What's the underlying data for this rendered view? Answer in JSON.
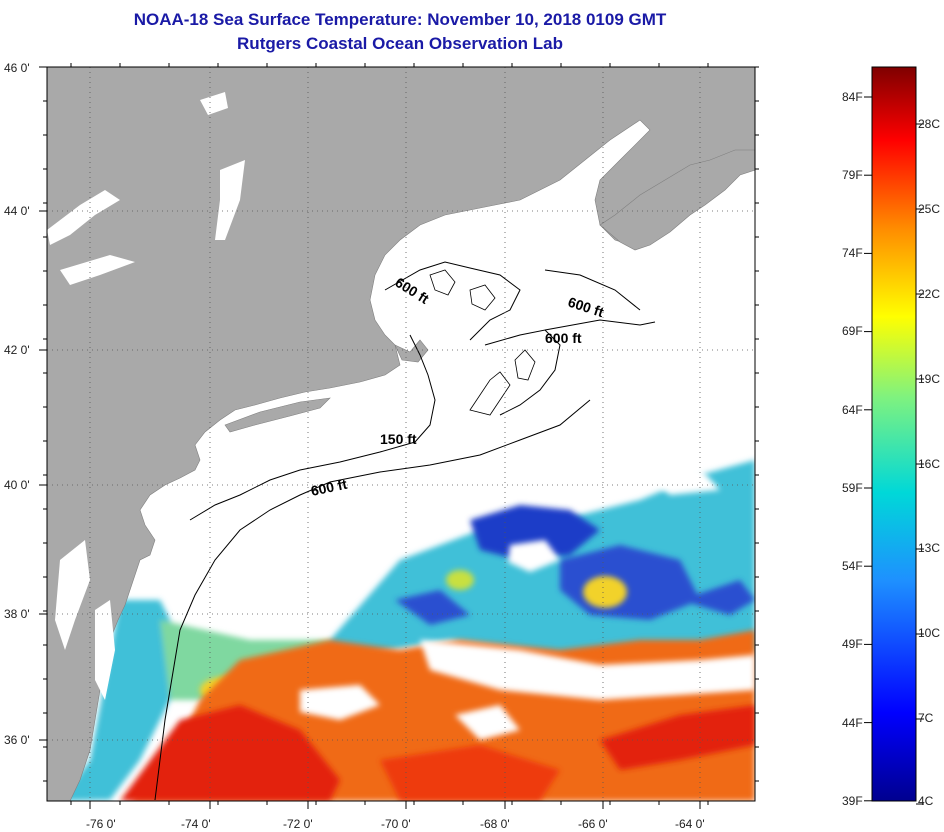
{
  "title": {
    "line1": "NOAA-18 Sea Surface Temperature:  November 10, 2018 0109 GMT",
    "line2": "Rutgers Coastal Ocean Observation Lab"
  },
  "map": {
    "lat_labels": [
      "46 0'",
      "44 0'",
      "42 0'",
      "40 0'",
      "38 0'",
      "36 0'"
    ],
    "lon_labels": [
      "-76 0'",
      "-74 0'",
      "-72 0'",
      "-70 0'",
      "-68 0'",
      "-66 0'",
      "-64 0'"
    ],
    "contour_labels": [
      "600 ft",
      "600 ft",
      "600 ft",
      "150 ft",
      "600 ft"
    ],
    "colors": {
      "land": "#a9a9a9",
      "cloud": "#ffffff",
      "cold": "#1e3ec8",
      "cool": "#3fc0d8",
      "mild": "#f2d22a",
      "warm": "#f06a18",
      "hot": "#e3210e"
    }
  },
  "colorbar": {
    "f_labels": [
      "84F",
      "79F",
      "74F",
      "69F",
      "64F",
      "59F",
      "54F",
      "49F",
      "44F",
      "39F"
    ],
    "c_labels": [
      "28C",
      "25C",
      "22C",
      "19C",
      "16C",
      "13C",
      "10C",
      "7C",
      "4C"
    ]
  }
}
